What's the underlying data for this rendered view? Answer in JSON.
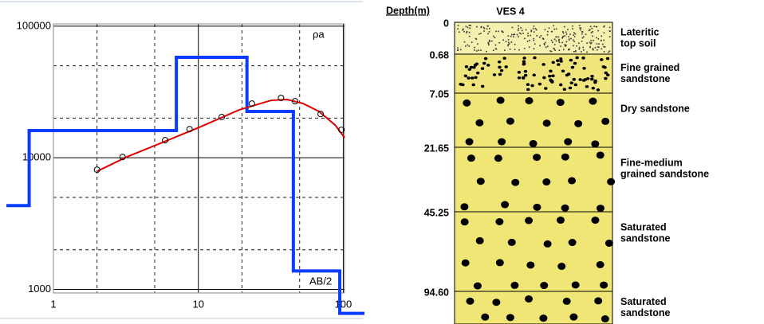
{
  "chart_data": {
    "type": "sounding",
    "xlim": [
      1,
      102
    ],
    "ylim": [
      940,
      104000
    ],
    "log_x": true,
    "log_y": true,
    "xticks": [
      1,
      10,
      100
    ],
    "yticks": [
      1000,
      10000,
      100000
    ],
    "x_minor_grid": [
      2,
      5,
      20,
      50
    ],
    "y_minor_grid": [
      2000,
      5000,
      20000,
      50000
    ],
    "y_label": "ρa",
    "x_label": "AB/2",
    "observed": {
      "color": "#000000",
      "x": [
        2,
        3,
        5.9,
        8.7,
        14.5,
        23.4,
        37.2,
        46.5,
        69.8,
        97
      ],
      "values": [
        8110,
        10140,
        13600,
        16500,
        20400,
        25800,
        28500,
        26900,
        21500,
        16300
      ]
    },
    "fit": {
      "color": "#e00000",
      "x": [
        2,
        3.2,
        5.4,
        10.1,
        19.1,
        31.8,
        41,
        53,
        68,
        88,
        102
      ],
      "values": [
        7890,
        10140,
        12800,
        17000,
        23100,
        27300,
        27700,
        25800,
        22500,
        17700,
        14200
      ]
    },
    "model": {
      "color": "#0a3cff",
      "depths": [
        0.68,
        7.05,
        21.65,
        45.25,
        94.6
      ],
      "resistivity": [
        4330,
        16100,
        58000,
        22500,
        1380,
        658
      ]
    }
  },
  "lithology": {
    "depth_header": "Depth(m)",
    "title": "VES 4",
    "depth_labels": [
      "0",
      "0.68",
      "7.05",
      "21.65",
      "45.25",
      "94.60"
    ],
    "layers": [
      [
        "Lateritic",
        "top soil"
      ],
      [
        "Fine grained",
        "sandstone"
      ],
      [
        "Dry sandstone"
      ],
      [
        "Fine-medium",
        "grained sandstone"
      ],
      [
        "Saturated",
        "sandstone"
      ],
      [
        "Saturated",
        "sandstone"
      ]
    ]
  }
}
